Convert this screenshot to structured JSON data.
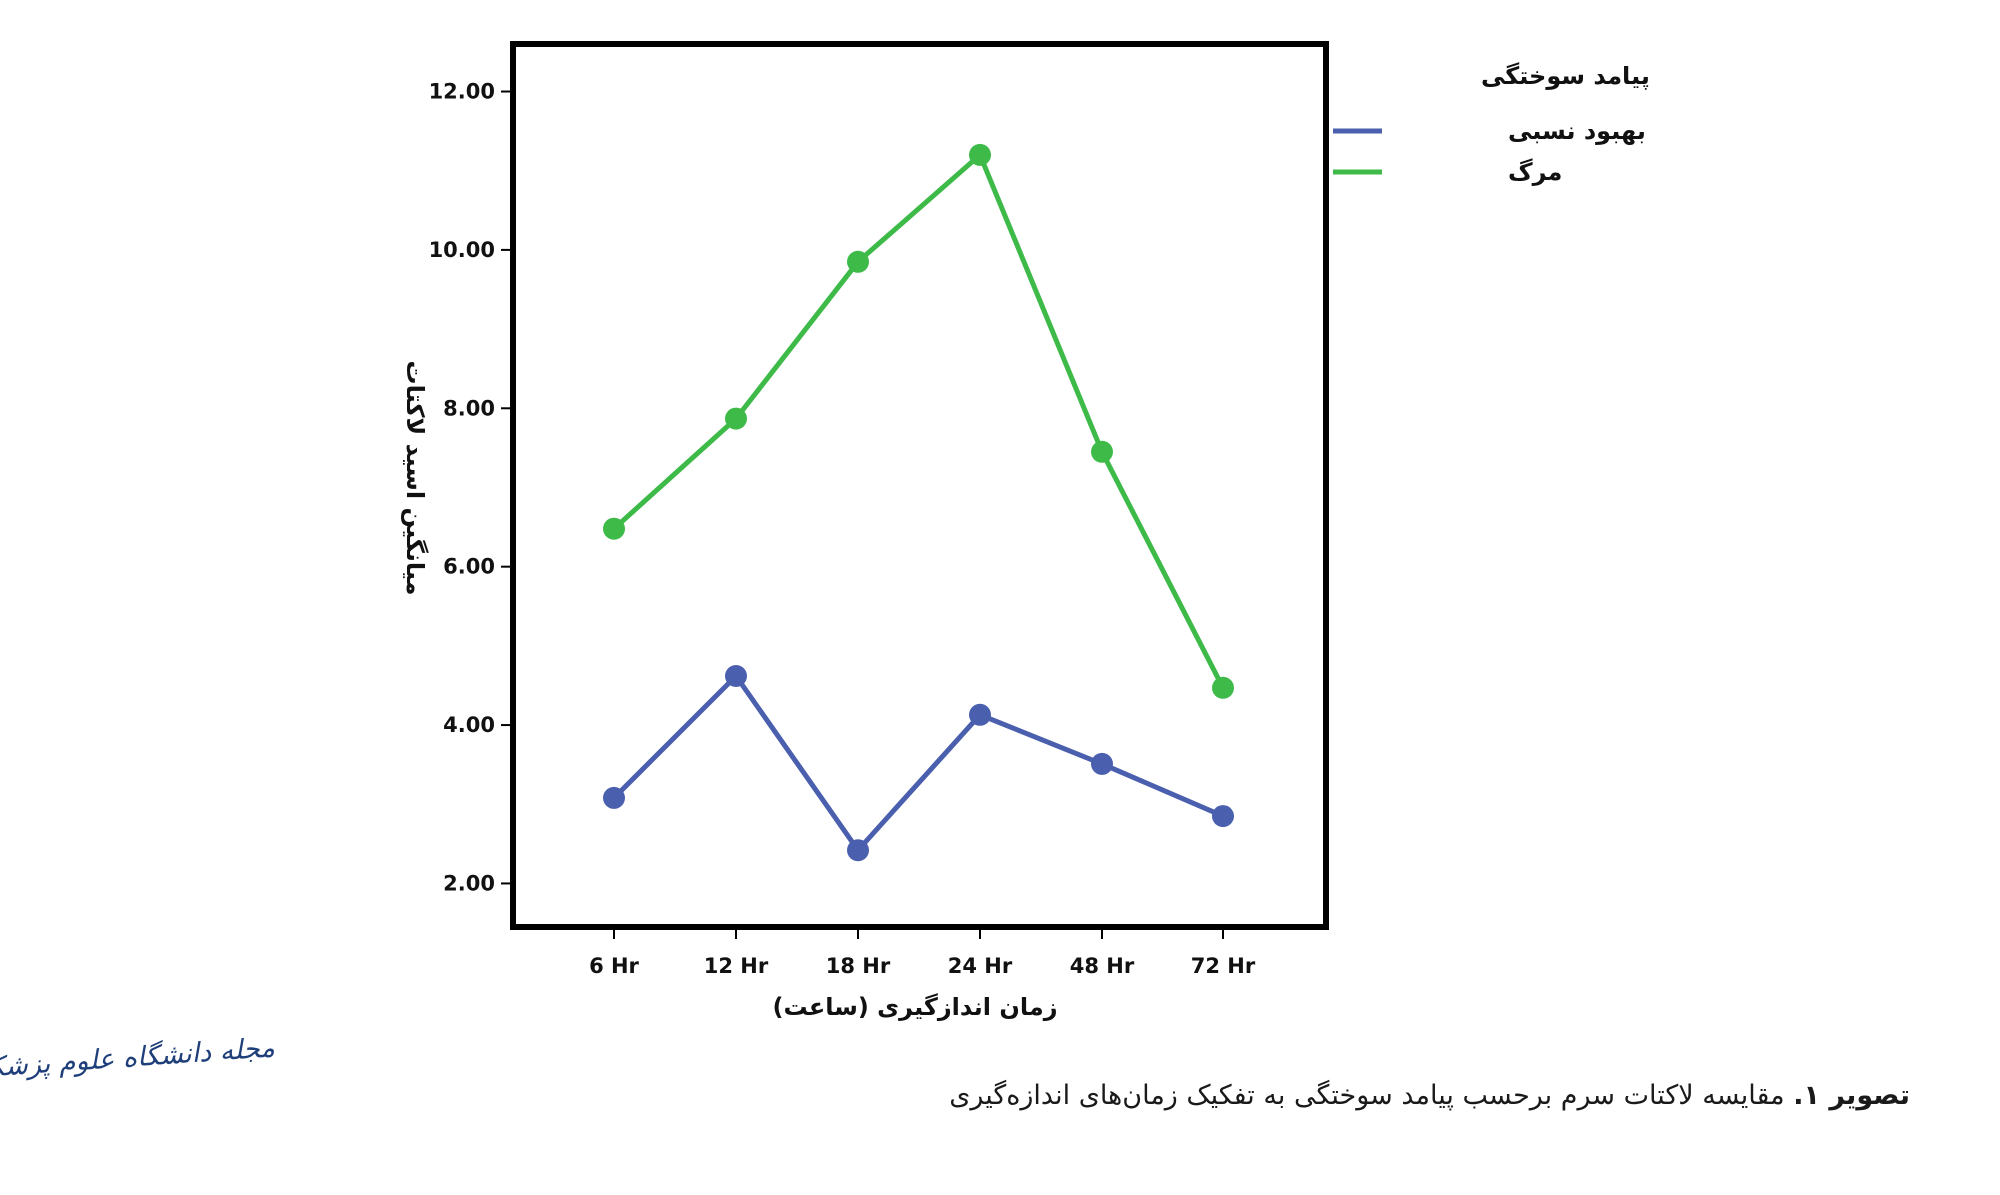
{
  "chart_data": {
    "type": "line",
    "ylabel": "میانگین اسید لاکتات",
    "xlabel": "زمان اندازگیری (ساعت)",
    "categories": [
      "6 Hr",
      "12 Hr",
      "18 Hr",
      "24 Hr",
      "48 Hr",
      "72 Hr"
    ],
    "ylim": [
      1.45,
      12.6
    ],
    "yticks": [
      2.0,
      4.0,
      6.0,
      8.0,
      10.0,
      12.0
    ],
    "ytick_labels": [
      "2.00",
      "4.00",
      "6.00",
      "8.00",
      "10.00",
      "12.00"
    ],
    "grid": false,
    "legend": {
      "title": "پیامد سوختگی",
      "position": "right"
    },
    "series": [
      {
        "name": "بهبود نسبی",
        "color": "#4a5fad",
        "values": [
          3.08,
          4.62,
          2.42,
          4.13,
          3.51,
          2.85
        ]
      },
      {
        "name": "مرگ",
        "color": "#3dba48",
        "values": [
          6.48,
          7.87,
          9.85,
          11.2,
          7.45,
          4.47
        ]
      }
    ]
  },
  "caption": {
    "label": "تصویر ۱.",
    "text": " مقایسه لاکتات سرم برحسب پیامد سوختگی به تفکیک زمان‌های اندازه‌گیری"
  },
  "journal_logo": {
    "text": "مجله دانشگاه علوم پزشکی گیلان"
  }
}
